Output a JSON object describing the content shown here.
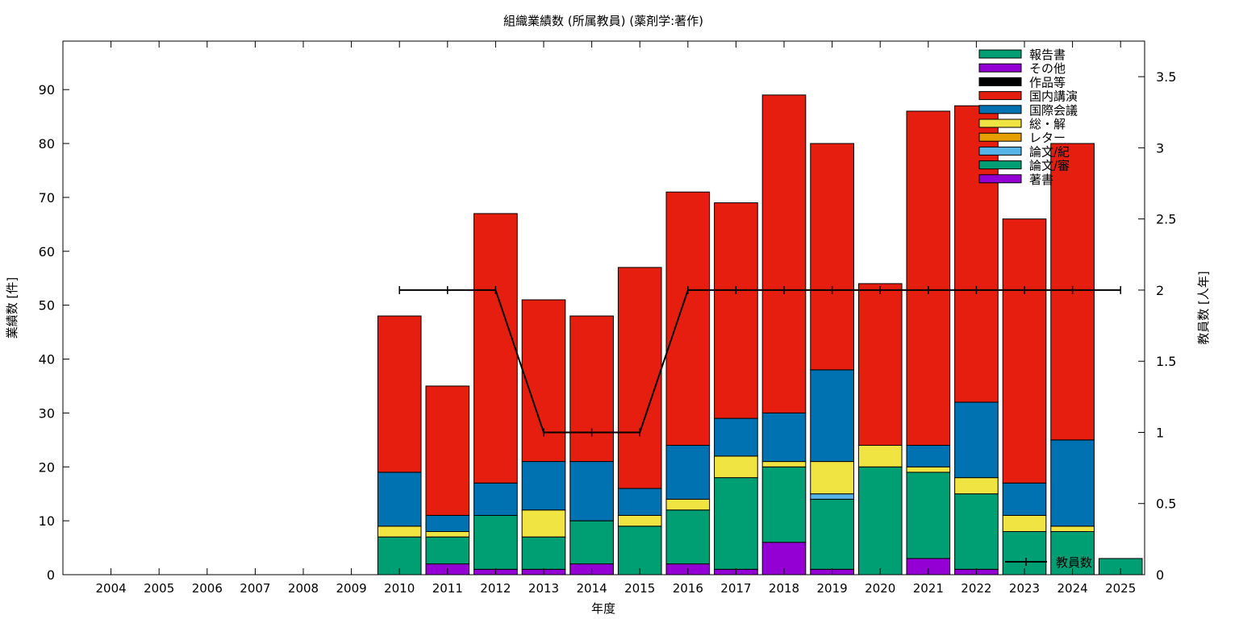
{
  "chart_data": {
    "type": "bar",
    "stacked": true,
    "title": "組織業績数 (所属教員) (薬剤学:著作)",
    "xlabel": "年度",
    "ylabel": "業績数 [件]",
    "y2label": "教員数 [人年]",
    "ylim": [
      0,
      99
    ],
    "y2lim": [
      0,
      3.75
    ],
    "yticks": [
      "0",
      "10",
      "20",
      "30",
      "40",
      "50",
      "60",
      "70",
      "80",
      "90"
    ],
    "y2ticks": [
      "0",
      "0.5",
      "1",
      "1.5",
      "2",
      "2.5",
      "3",
      "3.5"
    ],
    "grid": false,
    "legend_position": "top-right",
    "categories": [
      "2004",
      "2005",
      "2006",
      "2007",
      "2008",
      "2009",
      "2010",
      "2011",
      "2012",
      "2013",
      "2014",
      "2015",
      "2016",
      "2017",
      "2018",
      "2019",
      "2020",
      "2021",
      "2022",
      "2023",
      "2024",
      "2025"
    ],
    "series": [
      {
        "name": "著書",
        "color": "#9400d3",
        "values": [
          0,
          0,
          0,
          0,
          0,
          0,
          0,
          2,
          1,
          1,
          2,
          0,
          2,
          1,
          6,
          1,
          0,
          3,
          1,
          0,
          0,
          0
        ]
      },
      {
        "name": "論文/審",
        "color": "#009e73",
        "values": [
          0,
          0,
          0,
          0,
          0,
          0,
          7,
          5,
          10,
          6,
          8,
          9,
          10,
          17,
          14,
          13,
          20,
          16,
          14,
          8,
          8,
          0
        ]
      },
      {
        "name": "論文/紀",
        "color": "#56b4e9",
        "values": [
          0,
          0,
          0,
          0,
          0,
          0,
          0,
          0,
          0,
          0,
          0,
          0,
          0,
          0,
          0,
          1,
          0,
          0,
          0,
          0,
          0,
          0
        ]
      },
      {
        "name": "レター",
        "color": "#e69f00",
        "values": [
          0,
          0,
          0,
          0,
          0,
          0,
          0,
          0,
          0,
          0,
          0,
          0,
          0,
          0,
          0,
          0,
          0,
          0,
          0,
          0,
          0,
          0
        ]
      },
      {
        "name": "総・解",
        "color": "#f0e442",
        "values": [
          0,
          0,
          0,
          0,
          0,
          0,
          2,
          1,
          0,
          5,
          0,
          2,
          2,
          4,
          1,
          6,
          4,
          1,
          3,
          3,
          1,
          0
        ]
      },
      {
        "name": "国際会議",
        "color": "#0072b2",
        "values": [
          0,
          0,
          0,
          0,
          0,
          0,
          10,
          3,
          6,
          9,
          11,
          5,
          10,
          7,
          9,
          17,
          0,
          4,
          14,
          6,
          16,
          0
        ]
      },
      {
        "name": "国内講演",
        "color": "#e51e10",
        "values": [
          0,
          0,
          0,
          0,
          0,
          0,
          29,
          24,
          50,
          30,
          27,
          41,
          47,
          40,
          59,
          42,
          30,
          62,
          55,
          49,
          55,
          0
        ]
      },
      {
        "name": "作品等",
        "color": "#000000",
        "values": [
          0,
          0,
          0,
          0,
          0,
          0,
          0,
          0,
          0,
          0,
          0,
          0,
          0,
          0,
          0,
          0,
          0,
          0,
          0,
          0,
          0,
          0
        ]
      },
      {
        "name": "その他",
        "color": "#9400d3",
        "values": [
          0,
          0,
          0,
          0,
          0,
          0,
          0,
          0,
          0,
          0,
          0,
          0,
          0,
          0,
          0,
          0,
          0,
          0,
          0,
          0,
          0,
          0
        ]
      },
      {
        "name": "報告書",
        "color": "#009e73",
        "values": [
          0,
          0,
          0,
          0,
          0,
          0,
          0,
          0,
          0,
          0,
          0,
          0,
          0,
          0,
          0,
          0,
          0,
          0,
          0,
          0,
          0,
          3
        ]
      }
    ],
    "line_series": {
      "name": "教員数",
      "axis": "y2",
      "color": "#000000",
      "x": [
        "2010",
        "2011",
        "2012",
        "2013",
        "2014",
        "2015",
        "2016",
        "2017",
        "2018",
        "2019",
        "2020",
        "2021",
        "2022",
        "2023",
        "2024",
        "2025"
      ],
      "values": [
        2,
        2,
        2,
        1,
        1,
        1,
        2,
        2,
        2,
        2,
        2,
        2,
        2,
        2,
        2,
        2
      ]
    }
  }
}
